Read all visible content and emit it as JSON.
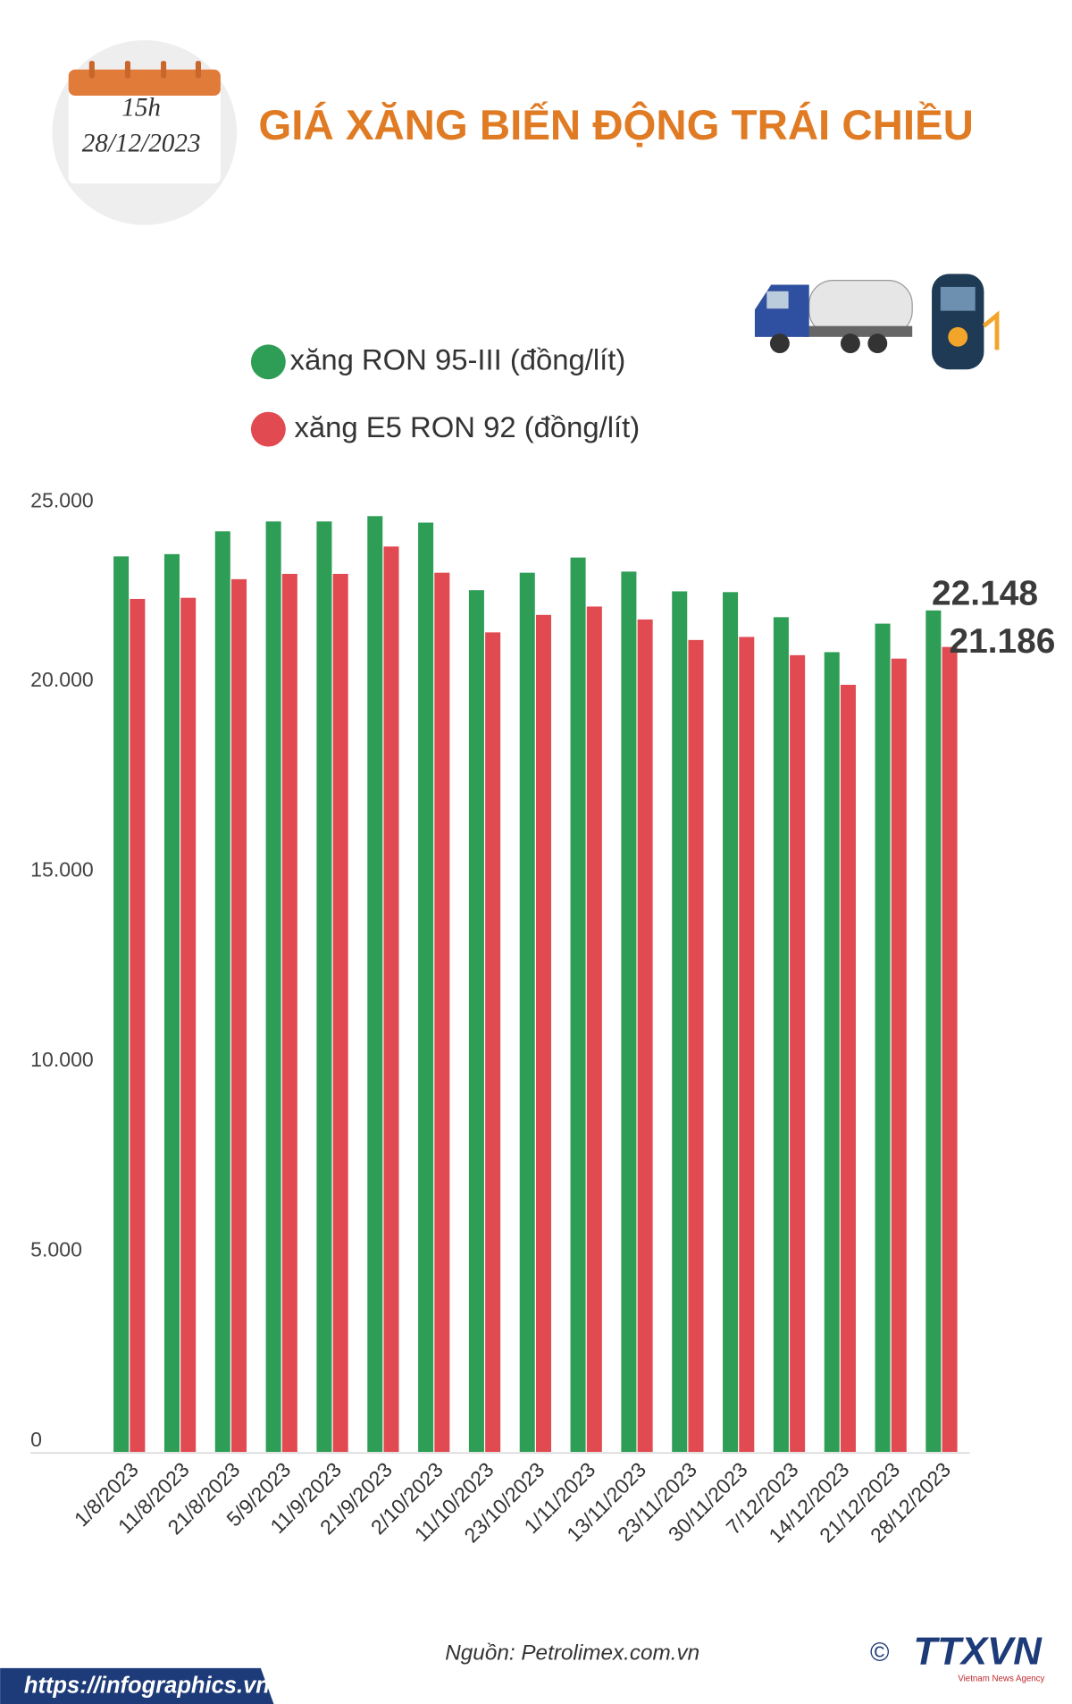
{
  "date_badge": {
    "time": "15h",
    "date": "28/12/2023"
  },
  "chart_data": {
    "type": "bar",
    "title": "GIÁ XĂNG BIẾN ĐỘNG TRÁI CHIỀU",
    "categories": [
      "1/8/2023",
      "11/8/2023",
      "21/8/2023",
      "5/9/2023",
      "11/9/2023",
      "21/9/2023",
      "2/10/2023",
      "11/10/2023",
      "23/10/2023",
      "1/11/2023",
      "13/11/2023",
      "23/11/2023",
      "30/11/2023",
      "7/12/2023",
      "14/12/2023",
      "21/12/2023",
      "28/12/2023"
    ],
    "series": [
      {
        "name": "xăng RON 95-III (đồng/lít)",
        "color": "#2e9d55",
        "values": [
          23570,
          23630,
          24230,
          24490,
          24490,
          24630,
          24460,
          22680,
          23140,
          23540,
          23170,
          22650,
          22630,
          21970,
          21050,
          21800,
          22148
        ],
        "value_labels": [
          null,
          null,
          null,
          null,
          null,
          null,
          null,
          null,
          null,
          null,
          null,
          null,
          null,
          null,
          null,
          null,
          "22.148"
        ]
      },
      {
        "name": "xăng E5 RON 92 (đồng/lít)",
        "color": "#e04a50",
        "values": [
          22450,
          22480,
          22970,
          23110,
          23110,
          23830,
          23140,
          21570,
          22030,
          22250,
          21910,
          21370,
          21450,
          20970,
          20190,
          20880,
          21186
        ],
        "value_labels": [
          null,
          null,
          null,
          null,
          null,
          null,
          null,
          null,
          null,
          null,
          null,
          null,
          null,
          null,
          null,
          null,
          "21.186"
        ]
      }
    ],
    "ylim": [
      0,
      25000
    ],
    "yticks": [
      0,
      {
        "value": 5000,
        "label": "5.000"
      },
      {
        "value": 10000,
        "label": "10.000"
      },
      {
        "value": 15000,
        "label": "15.000"
      },
      {
        "value": 20000,
        "label": "20.000"
      },
      {
        "value": 25000,
        "label": "25.000"
      }
    ],
    "grid": false
  },
  "footer": {
    "source": "Nguồn: Petrolimex.com.vn",
    "website": "https://infographics.vn",
    "copyright": "©",
    "logo": "TTXVN",
    "agency": "Vietnam News Agency"
  }
}
